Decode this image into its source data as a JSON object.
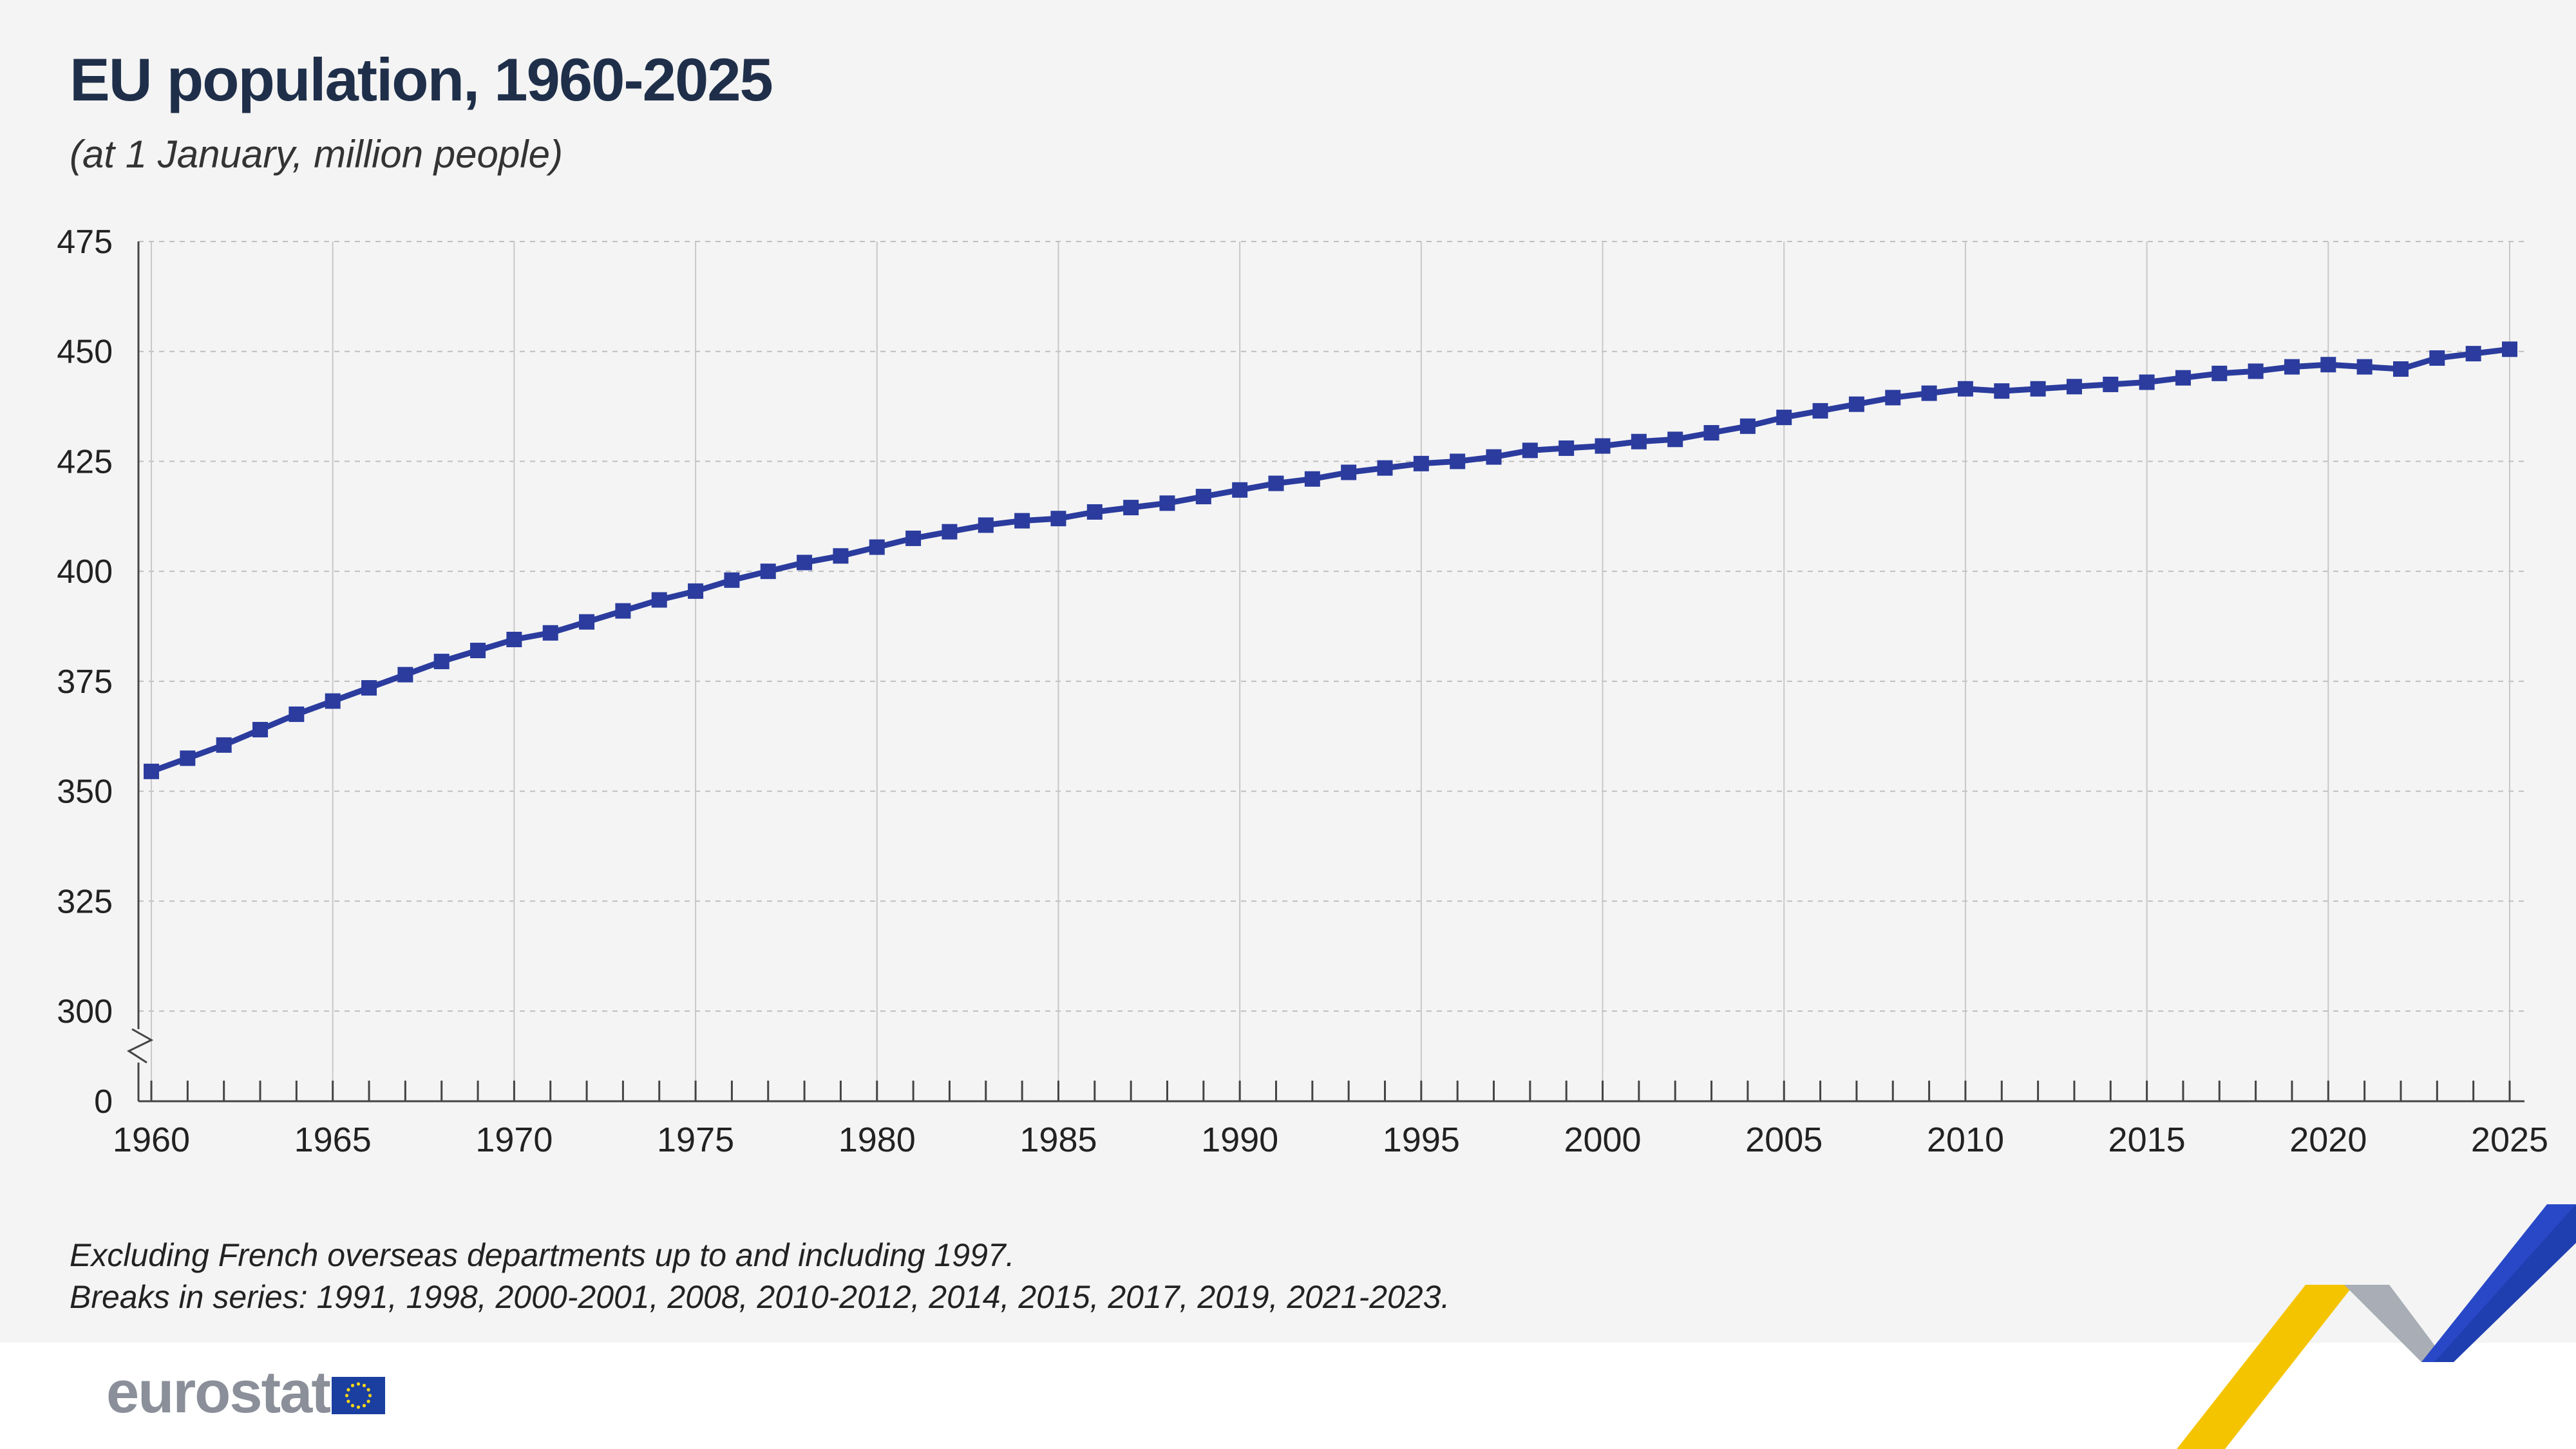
{
  "header": {
    "title": "EU population, 1960-2025",
    "subtitle": "(at 1 January, million people)"
  },
  "notes": {
    "line1": "Excluding French overseas departments up to and including 1997.",
    "line2": "Breaks in series: 1991, 1998, 2000-2001, 2008, 2010-2012, 2014, 2015, 2017, 2019, 2021-2023."
  },
  "footer": {
    "logo": "eurostat"
  },
  "colors": {
    "series": "#2b3c9e",
    "grid": "#bfbfbf",
    "axis": "#444444"
  },
  "chart_data": {
    "type": "line",
    "title": "EU population, 1960-2025",
    "subtitle": "(at 1 January, million people)",
    "xlabel": "",
    "ylabel": "",
    "x": [
      1960,
      1961,
      1962,
      1963,
      1964,
      1965,
      1966,
      1967,
      1968,
      1969,
      1970,
      1971,
      1972,
      1973,
      1974,
      1975,
      1976,
      1977,
      1978,
      1979,
      1980,
      1981,
      1982,
      1983,
      1984,
      1985,
      1986,
      1987,
      1988,
      1989,
      1990,
      1991,
      1992,
      1993,
      1994,
      1995,
      1996,
      1997,
      1998,
      1999,
      2000,
      2001,
      2002,
      2003,
      2004,
      2005,
      2006,
      2007,
      2008,
      2009,
      2010,
      2011,
      2012,
      2013,
      2014,
      2015,
      2016,
      2017,
      2018,
      2019,
      2020,
      2021,
      2022,
      2023,
      2024,
      2025
    ],
    "series": [
      {
        "name": "",
        "values": [
          354.5,
          357.5,
          360.5,
          364.0,
          367.5,
          370.5,
          373.5,
          376.5,
          379.5,
          382.0,
          384.5,
          386.0,
          388.5,
          391.0,
          393.5,
          395.5,
          398.0,
          400.0,
          402.0,
          403.5,
          405.5,
          407.5,
          409.0,
          410.5,
          411.5,
          412.0,
          413.5,
          414.5,
          415.5,
          417.0,
          418.5,
          420.0,
          421.0,
          422.5,
          423.5,
          424.5,
          425.0,
          426.0,
          427.5,
          428.0,
          428.5,
          429.5,
          430.0,
          431.5,
          433.0,
          435.0,
          436.5,
          438.0,
          439.5,
          440.5,
          441.5,
          441.0,
          441.5,
          442.0,
          442.5,
          443.0,
          444.0,
          445.0,
          445.5,
          446.5,
          447.0,
          446.5,
          446.0,
          448.5,
          449.5,
          450.5
        ]
      }
    ],
    "ylim": [
      300,
      475
    ],
    "yticks": [
      "475",
      "450",
      "425",
      "400",
      "375",
      "350",
      "325",
      "300",
      "0"
    ],
    "xticks": [
      "1960",
      "1965",
      "1970",
      "1975",
      "1980",
      "1985",
      "1990",
      "1995",
      "2000",
      "2005",
      "2010",
      "2015",
      "2020",
      "2025"
    ],
    "y_axis_break": true,
    "grid": true,
    "legend": "none"
  }
}
